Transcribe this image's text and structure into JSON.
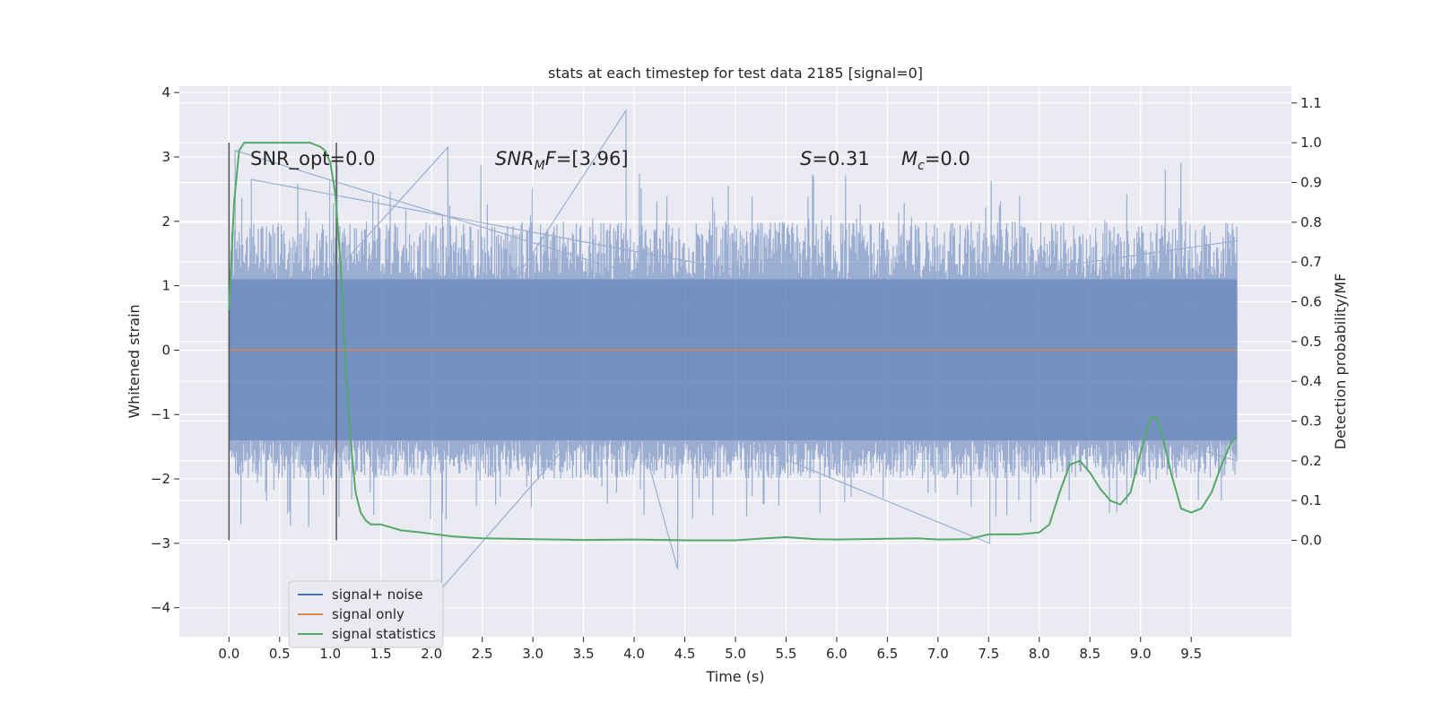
{
  "chart_data": {
    "type": "line",
    "title": "stats at each timestep for test data 2185 [signal=0]",
    "xlabel": "Time (s)",
    "ylabel": "Whitened strain",
    "y2label": "Detection probability/MF",
    "xlim": [
      -0.49,
      10.49
    ],
    "ylim": [
      -4.45,
      4.1
    ],
    "y2lim": [
      -0.2424,
      1.1424
    ],
    "x_ticks": [
      "0.0",
      "0.5",
      "1.0",
      "1.5",
      "2.0",
      "2.5",
      "3.0",
      "3.5",
      "4.0",
      "4.5",
      "5.0",
      "5.5",
      "6.0",
      "6.5",
      "7.0",
      "7.5",
      "8.0",
      "8.5",
      "9.0",
      "9.5"
    ],
    "y_ticks": [
      "4",
      "3",
      "2",
      "1",
      "0",
      "−1",
      "−2",
      "−3",
      "−4"
    ],
    "y2_ticks": [
      "1.1",
      "1.0",
      "0.9",
      "0.8",
      "0.7",
      "0.6",
      "0.5",
      "0.4",
      "0.3",
      "0.2",
      "0.1",
      "0.0"
    ],
    "grid": true,
    "legend_position": "bottom-left",
    "annotations": {
      "snr_opt": "SNR_opt=0.0",
      "snr_mf_var": "SNR",
      "snr_mf_sub": "M",
      "snr_mf_var2": "F",
      "snr_mf_val": "=[3.96]",
      "s_var": "S",
      "s_val": "=0.31",
      "mc_var": "M",
      "mc_sub": "c",
      "mc_val": "=0.0"
    },
    "vlines": [
      0.0,
      1.06
    ],
    "series": [
      {
        "name": "signal+ noise",
        "color": "#4c72b0",
        "axis": "left",
        "style": "noisy band",
        "x_range": [
          0.0,
          9.95
        ],
        "band": [
          -1.4,
          1.1
        ],
        "notable_peaks": [
          [
            0.06,
            3.1
          ],
          [
            2.16,
            3.15
          ],
          [
            3.92,
            3.72
          ],
          [
            4.43,
            -3.4
          ],
          [
            2.1,
            -3.7
          ],
          [
            7.51,
            -3.0
          ],
          [
            0.22,
            2.65
          ],
          [
            9.95,
            1.7
          ]
        ]
      },
      {
        "name": "signal only",
        "color": "#dd8452",
        "axis": "left",
        "x": [
          0.0,
          9.95
        ],
        "y": [
          0.0,
          0.0
        ]
      },
      {
        "name": "signal statistics",
        "color": "#55a868",
        "axis": "right",
        "x": [
          0.0,
          0.05,
          0.1,
          0.15,
          0.25,
          0.4,
          0.6,
          0.8,
          0.9,
          0.95,
          1.0,
          1.05,
          1.1,
          1.15,
          1.2,
          1.25,
          1.3,
          1.35,
          1.4,
          1.5,
          1.7,
          1.9,
          2.2,
          2.5,
          3.0,
          3.5,
          4.0,
          4.5,
          5.0,
          5.3,
          5.5,
          5.8,
          6.0,
          6.5,
          6.8,
          7.0,
          7.3,
          7.5,
          7.8,
          8.0,
          8.1,
          8.2,
          8.3,
          8.4,
          8.5,
          8.6,
          8.7,
          8.8,
          8.9,
          9.0,
          9.1,
          9.15,
          9.2,
          9.3,
          9.4,
          9.5,
          9.6,
          9.7,
          9.8,
          9.9,
          9.95
        ],
        "y": [
          0.58,
          0.85,
          0.98,
          1.0,
          1.0,
          1.0,
          1.0,
          1.0,
          0.99,
          0.98,
          0.95,
          0.87,
          0.7,
          0.45,
          0.25,
          0.12,
          0.07,
          0.05,
          0.04,
          0.04,
          0.025,
          0.02,
          0.01,
          0.005,
          0.003,
          0.001,
          0.002,
          0.0,
          0.0,
          0.005,
          0.008,
          0.003,
          0.002,
          0.004,
          0.005,
          0.002,
          0.003,
          0.015,
          0.015,
          0.02,
          0.04,
          0.12,
          0.19,
          0.2,
          0.17,
          0.13,
          0.1,
          0.09,
          0.12,
          0.22,
          0.31,
          0.31,
          0.28,
          0.17,
          0.08,
          0.07,
          0.08,
          0.12,
          0.19,
          0.25,
          0.26
        ]
      }
    ]
  }
}
